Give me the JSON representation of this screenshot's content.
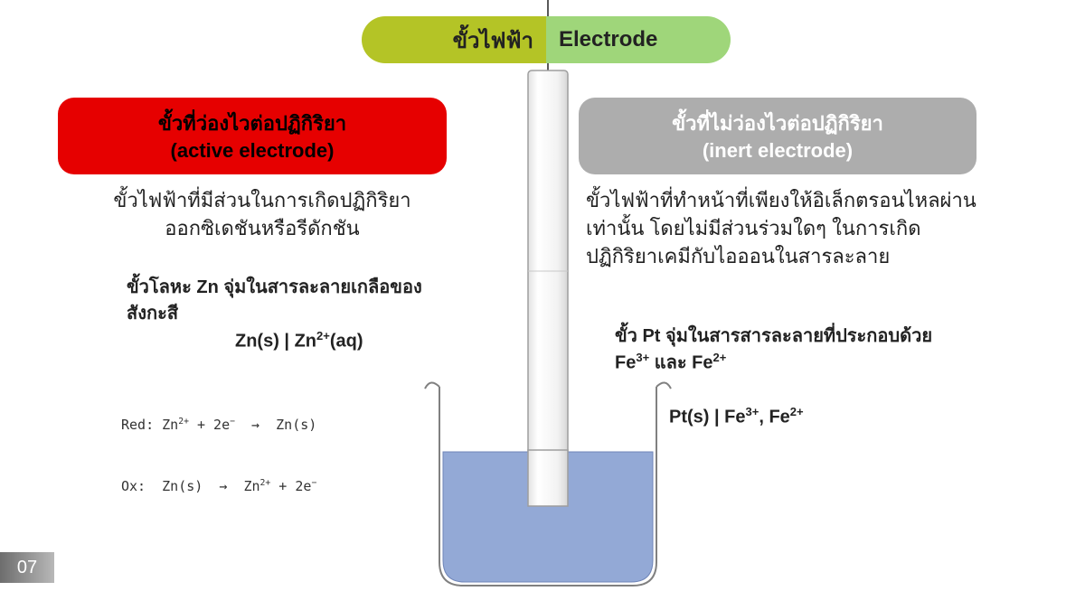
{
  "title": {
    "thai": "ขั้วไฟฟ้า",
    "en": "Electrode"
  },
  "active": {
    "heading_thai": "ขั้วที่ว่องไวต่อปฏิกิริยา",
    "heading_en": "(active electrode)",
    "description": "ขั้วไฟฟ้าที่มีส่วนในการเกิดปฏิกิริยาออกซิเดชันหรือรีดักชัน",
    "example": "ขั้วโลหะ Zn จุ่มในสารละลายเกลือของสังกะสี",
    "notation_html": "Zn(s) | Zn<sup>2+</sup>(aq)",
    "reduction_html": "Red: Zn<sup>2+</sup> + 2e<sup>−</sup>  →  Zn(s)",
    "oxidation_html": "Ox:  Zn(s)  →  Zn<sup>2+</sup> + 2e<sup>−</sup>",
    "box_color": "#e60000",
    "text_color": "#000000"
  },
  "inert": {
    "heading_thai": "ขั้วที่ไม่ว่องไวต่อปฏิกิริยา",
    "heading_en": "(inert electrode)",
    "description": "ขั้วไฟฟ้าที่ทำหน้าที่เพียงให้อิเล็กตรอนไหลผ่านเท่านั้น โดยไม่มีส่วนร่วมใดๆ ในการเกิดปฏิกิริยาเคมีกับไอออนในสารละลาย",
    "example_html": "ขั้ว Pt จุ่มในสารสารละลายที่ประกอบด้วย Fe<sup>3+</sup> และ Fe<sup>2+</sup>",
    "notation_html": "Pt(s) | Fe<sup>3+</sup>, Fe<sup>2+</sup>",
    "box_color": "#adadad",
    "text_color": "#ffffff"
  },
  "diagram": {
    "type": "infographic",
    "wire_color": "#5a5a5a",
    "electrode_fill": "#f4f4f4",
    "electrode_border": "#9e9e9e",
    "beaker_border": "#808080",
    "solution_fill": "#93a9d6",
    "solution_border": "#6f85b8",
    "background_color": "#ffffff",
    "title_left_bg": "#b4c426",
    "title_right_bg": "#9fd67a"
  },
  "page_number": "07",
  "fonts": {
    "body": "Tahoma / Arial",
    "mono": "Consolas / Menlo",
    "title_size_pt": 24,
    "heading_size_pt": 22,
    "body_size_pt": 22,
    "example_size_pt": 20,
    "reaction_size_pt": 15
  }
}
